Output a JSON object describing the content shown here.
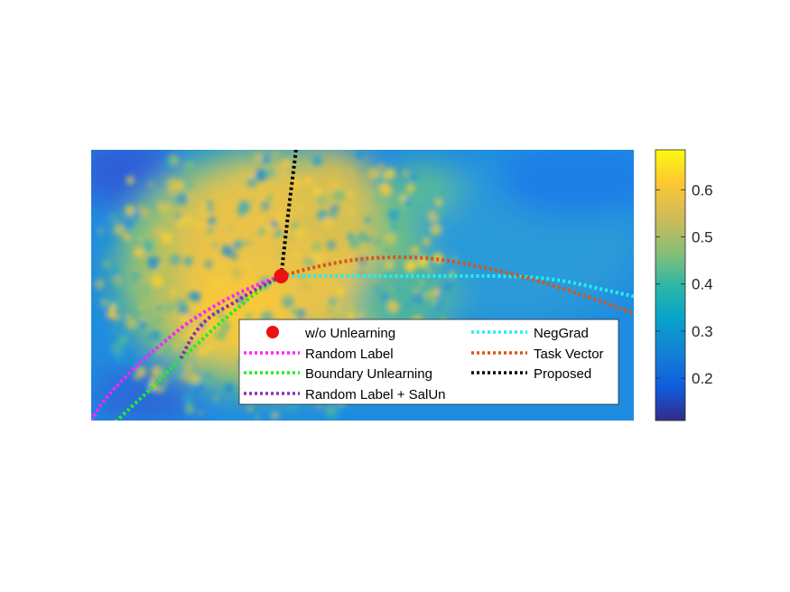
{
  "chart_data": {
    "type": "heatmap",
    "title": "",
    "xlabel": "",
    "ylabel": "",
    "axes_visible": false,
    "colormap": "parula",
    "colorbar": {
      "range": [
        0.11,
        0.685
      ],
      "ticks": [
        0.2,
        0.3,
        0.4,
        0.5,
        0.6
      ],
      "tick_labels": [
        "0.2",
        "0.3",
        "0.4",
        "0.5",
        "0.6"
      ]
    },
    "legend": {
      "placement": "bottom-center",
      "columns": 2,
      "entries": [
        {
          "id": "wo_unlearning",
          "label": "w/o Unlearning",
          "marker": "dot",
          "color": "#ee1111"
        },
        {
          "id": "random_label",
          "label": "Random Label",
          "line": "dotted",
          "color": "#ff22ff"
        },
        {
          "id": "boundary_unlearning",
          "label": "Boundary Unlearning",
          "line": "dotted",
          "color": "#22ee22"
        },
        {
          "id": "random_label_salun",
          "label": "Random Label + SalUn",
          "line": "dotted",
          "color": "#8a2fb8"
        },
        {
          "id": "neggrad",
          "label": "NegGrad",
          "line": "dotted",
          "color": "#22eeee"
        },
        {
          "id": "task_vector",
          "label": "Task Vector",
          "line": "dotted",
          "color": "#d9541a"
        },
        {
          "id": "proposed",
          "label": "Proposed",
          "line": "dotted",
          "color": "#000000"
        }
      ]
    },
    "series": [
      {
        "id": "random_label",
        "color": "#ff22ff",
        "points": [
          [
            0.0,
            0.0
          ],
          [
            0.02,
            0.12
          ],
          [
            0.05,
            0.25
          ],
          [
            0.09,
            0.4
          ],
          [
            0.13,
            0.53
          ],
          [
            0.18,
            0.68
          ],
          [
            0.24,
            0.82
          ],
          [
            0.3,
            0.93
          ],
          [
            0.35,
            1.0
          ]
        ]
      },
      {
        "id": "boundary_unlearning",
        "color": "#22ee22",
        "points": [
          [
            0.03,
            -0.06
          ],
          [
            0.07,
            0.08
          ],
          [
            0.11,
            0.22
          ],
          [
            0.15,
            0.37
          ],
          [
            0.19,
            0.51
          ],
          [
            0.23,
            0.65
          ],
          [
            0.27,
            0.78
          ],
          [
            0.31,
            0.9
          ],
          [
            0.35,
            1.0
          ]
        ]
      },
      {
        "id": "random_label_salun",
        "color": "#8a2fb8",
        "points": [
          [
            0.165,
            0.43
          ],
          [
            0.19,
            0.6
          ],
          [
            0.22,
            0.72
          ],
          [
            0.26,
            0.81
          ],
          [
            0.3,
            0.9
          ],
          [
            0.35,
            1.0
          ]
        ]
      },
      {
        "id": "neggrad",
        "color": "#22eeee",
        "points": [
          [
            0.35,
            1.0
          ],
          [
            0.45,
            1.0
          ],
          [
            0.55,
            1.0
          ],
          [
            0.65,
            1.0
          ],
          [
            0.75,
            1.0
          ],
          [
            0.82,
            0.99
          ],
          [
            0.88,
            0.96
          ],
          [
            0.94,
            0.91
          ],
          [
            1.0,
            0.86
          ]
        ]
      },
      {
        "id": "task_vector",
        "color": "#d9541a",
        "points": [
          [
            0.35,
            1.0
          ],
          [
            0.41,
            1.06
          ],
          [
            0.48,
            1.11
          ],
          [
            0.55,
            1.13
          ],
          [
            0.63,
            1.12
          ],
          [
            0.71,
            1.07
          ],
          [
            0.8,
            0.99
          ],
          [
            0.88,
            0.9
          ],
          [
            0.95,
            0.81
          ],
          [
            1.0,
            0.74
          ]
        ]
      },
      {
        "id": "proposed",
        "color": "#000000",
        "points": [
          [
            0.35,
            1.0
          ],
          [
            0.362,
            1.4
          ],
          [
            0.375,
            1.8
          ],
          [
            0.388,
            2.2
          ],
          [
            0.402,
            2.62
          ],
          [
            0.42,
            3.15
          ],
          [
            0.44,
            3.63
          ],
          [
            0.452,
            3.95
          ]
        ]
      }
    ],
    "reference_point": {
      "id": "wo_unlearning",
      "x": 0.35,
      "y": 1.0,
      "color": "#ee1111"
    }
  }
}
